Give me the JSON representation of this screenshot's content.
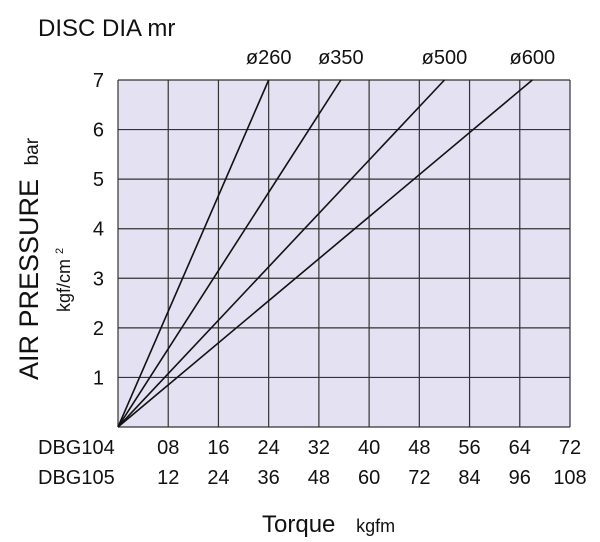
{
  "chart_data": {
    "type": "line",
    "title": "DISC DIA mr",
    "ylabel": "AIR PRESSURE",
    "ylabel_unit": "bar",
    "ylabel_unit2": "kgf/cm",
    "ylabel_unit2_sup": "2",
    "xlabel": "Torque",
    "xlabel_unit": "kgfm",
    "ylim": [
      0,
      7
    ],
    "xlim": [
      0,
      72
    ],
    "y_ticks": [
      "1",
      "2",
      "3",
      "4",
      "5",
      "6",
      "7"
    ],
    "x_axes": [
      {
        "name": "DBG104",
        "ticks": [
          "08",
          "16",
          "24",
          "32",
          "40",
          "48",
          "56",
          "64",
          "72"
        ]
      },
      {
        "name": "DBG105",
        "ticks": [
          "12",
          "24",
          "36",
          "48",
          "60",
          "72",
          "84",
          "96",
          "108"
        ]
      }
    ],
    "grid": true,
    "series": [
      {
        "name": "ø260",
        "points": [
          [
            0,
            0
          ],
          [
            24,
            7
          ]
        ]
      },
      {
        "name": "ø350",
        "points": [
          [
            0,
            0
          ],
          [
            35.5,
            7
          ]
        ]
      },
      {
        "name": "ø500",
        "points": [
          [
            0,
            0
          ],
          [
            52,
            7
          ]
        ]
      },
      {
        "name": "ø600",
        "points": [
          [
            0,
            0
          ],
          [
            66,
            7
          ]
        ]
      }
    ],
    "colors": {
      "plot_background": "#e3e1f2",
      "grid": "#333333",
      "lines": "#111111"
    }
  }
}
